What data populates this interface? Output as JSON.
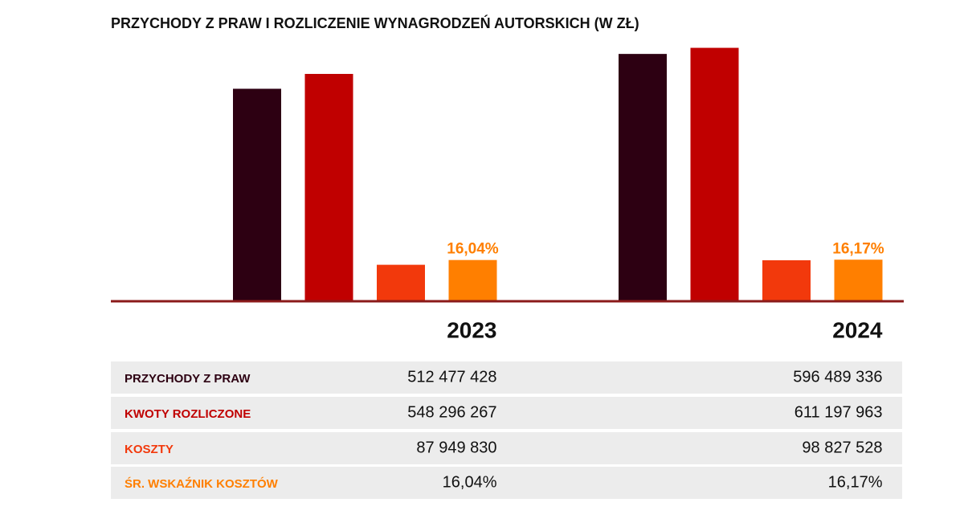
{
  "chart_data": {
    "type": "bar",
    "title": "PRZYCHODY Z PRAW I ROZLICZENIE WYNAGRODZEŃ AUTORSKICH (W ZŁ)",
    "categories": [
      "2023",
      "2024"
    ],
    "ylim": [
      0,
      620000000
    ],
    "y2lim": [
      0,
      100
    ],
    "series": [
      {
        "name": "PRZYCHODY Z PRAW",
        "color": "#2d0012",
        "values": [
          512477428,
          596489336
        ]
      },
      {
        "name": "KWOTY ROZLICZONE",
        "color": "#c00000",
        "values": [
          548296267,
          611197963
        ]
      },
      {
        "name": "KOSZTY",
        "color": "#f2390c",
        "values": [
          87949830,
          98827528
        ]
      },
      {
        "name": "ŚR. WSKAŹNIK KOSZTÓW",
        "color": "#ff7f00",
        "axis": "y2",
        "values": [
          16.04,
          16.17
        ],
        "value_labels": [
          "16,04%",
          "16,17%"
        ]
      }
    ]
  },
  "table": {
    "rows": [
      [
        "512 477 428",
        "596 489 336"
      ],
      [
        "548 296 267",
        "611 197 963"
      ],
      [
        "87 949 830",
        "98 827 528"
      ],
      [
        "16,04%",
        "16,17%"
      ]
    ]
  }
}
